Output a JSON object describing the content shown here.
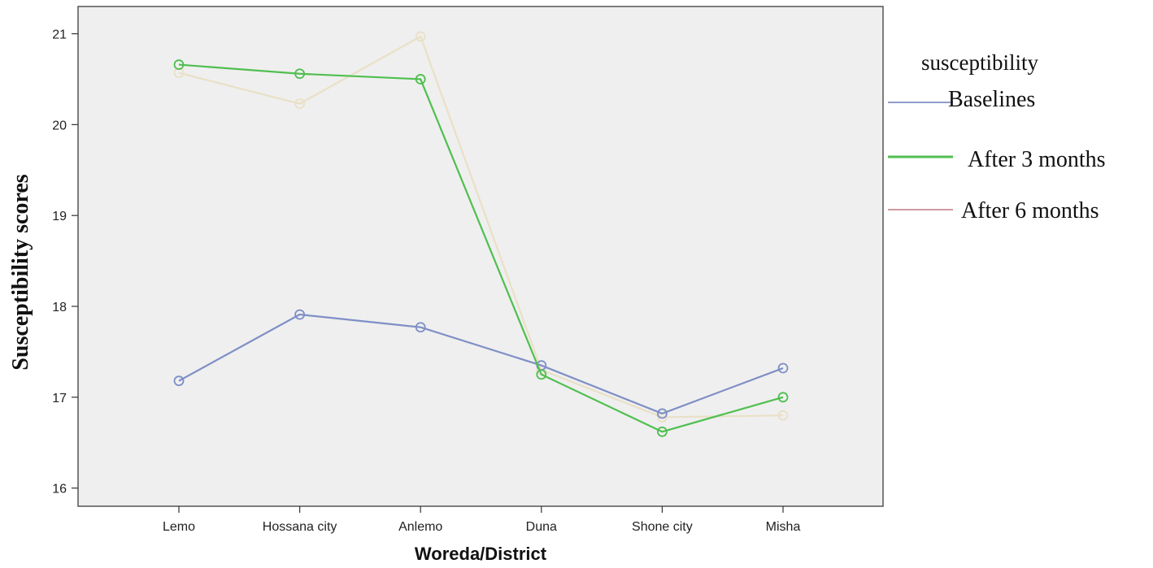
{
  "chart_data": {
    "type": "line",
    "title": "",
    "xlabel": "Woreda/District",
    "ylabel": "Susceptibility  scores",
    "categories": [
      "Lemo",
      "Hossana city",
      "Anlemo",
      "Duna",
      "Shone city",
      "Misha"
    ],
    "ylim": [
      15.8,
      21.3
    ],
    "yticks": [
      16,
      17,
      18,
      19,
      20,
      21
    ],
    "grid": false,
    "background": "#efefef",
    "legend": {
      "title": "susceptibility",
      "placement": "right"
    },
    "series": [
      {
        "name": "Baselines",
        "color": "#7f8fc6",
        "values": [
          17.18,
          17.91,
          17.77,
          17.35,
          16.82,
          17.32
        ]
      },
      {
        "name": "After 3 months",
        "color": "#4fbf4f",
        "values": [
          20.66,
          20.56,
          20.5,
          17.25,
          16.62,
          17.0
        ]
      },
      {
        "name": "After 6 months",
        "color": "#e9e0c6",
        "legend_color": "#c98b96",
        "values": [
          20.57,
          20.23,
          20.97,
          17.3,
          16.78,
          16.8
        ]
      }
    ]
  }
}
